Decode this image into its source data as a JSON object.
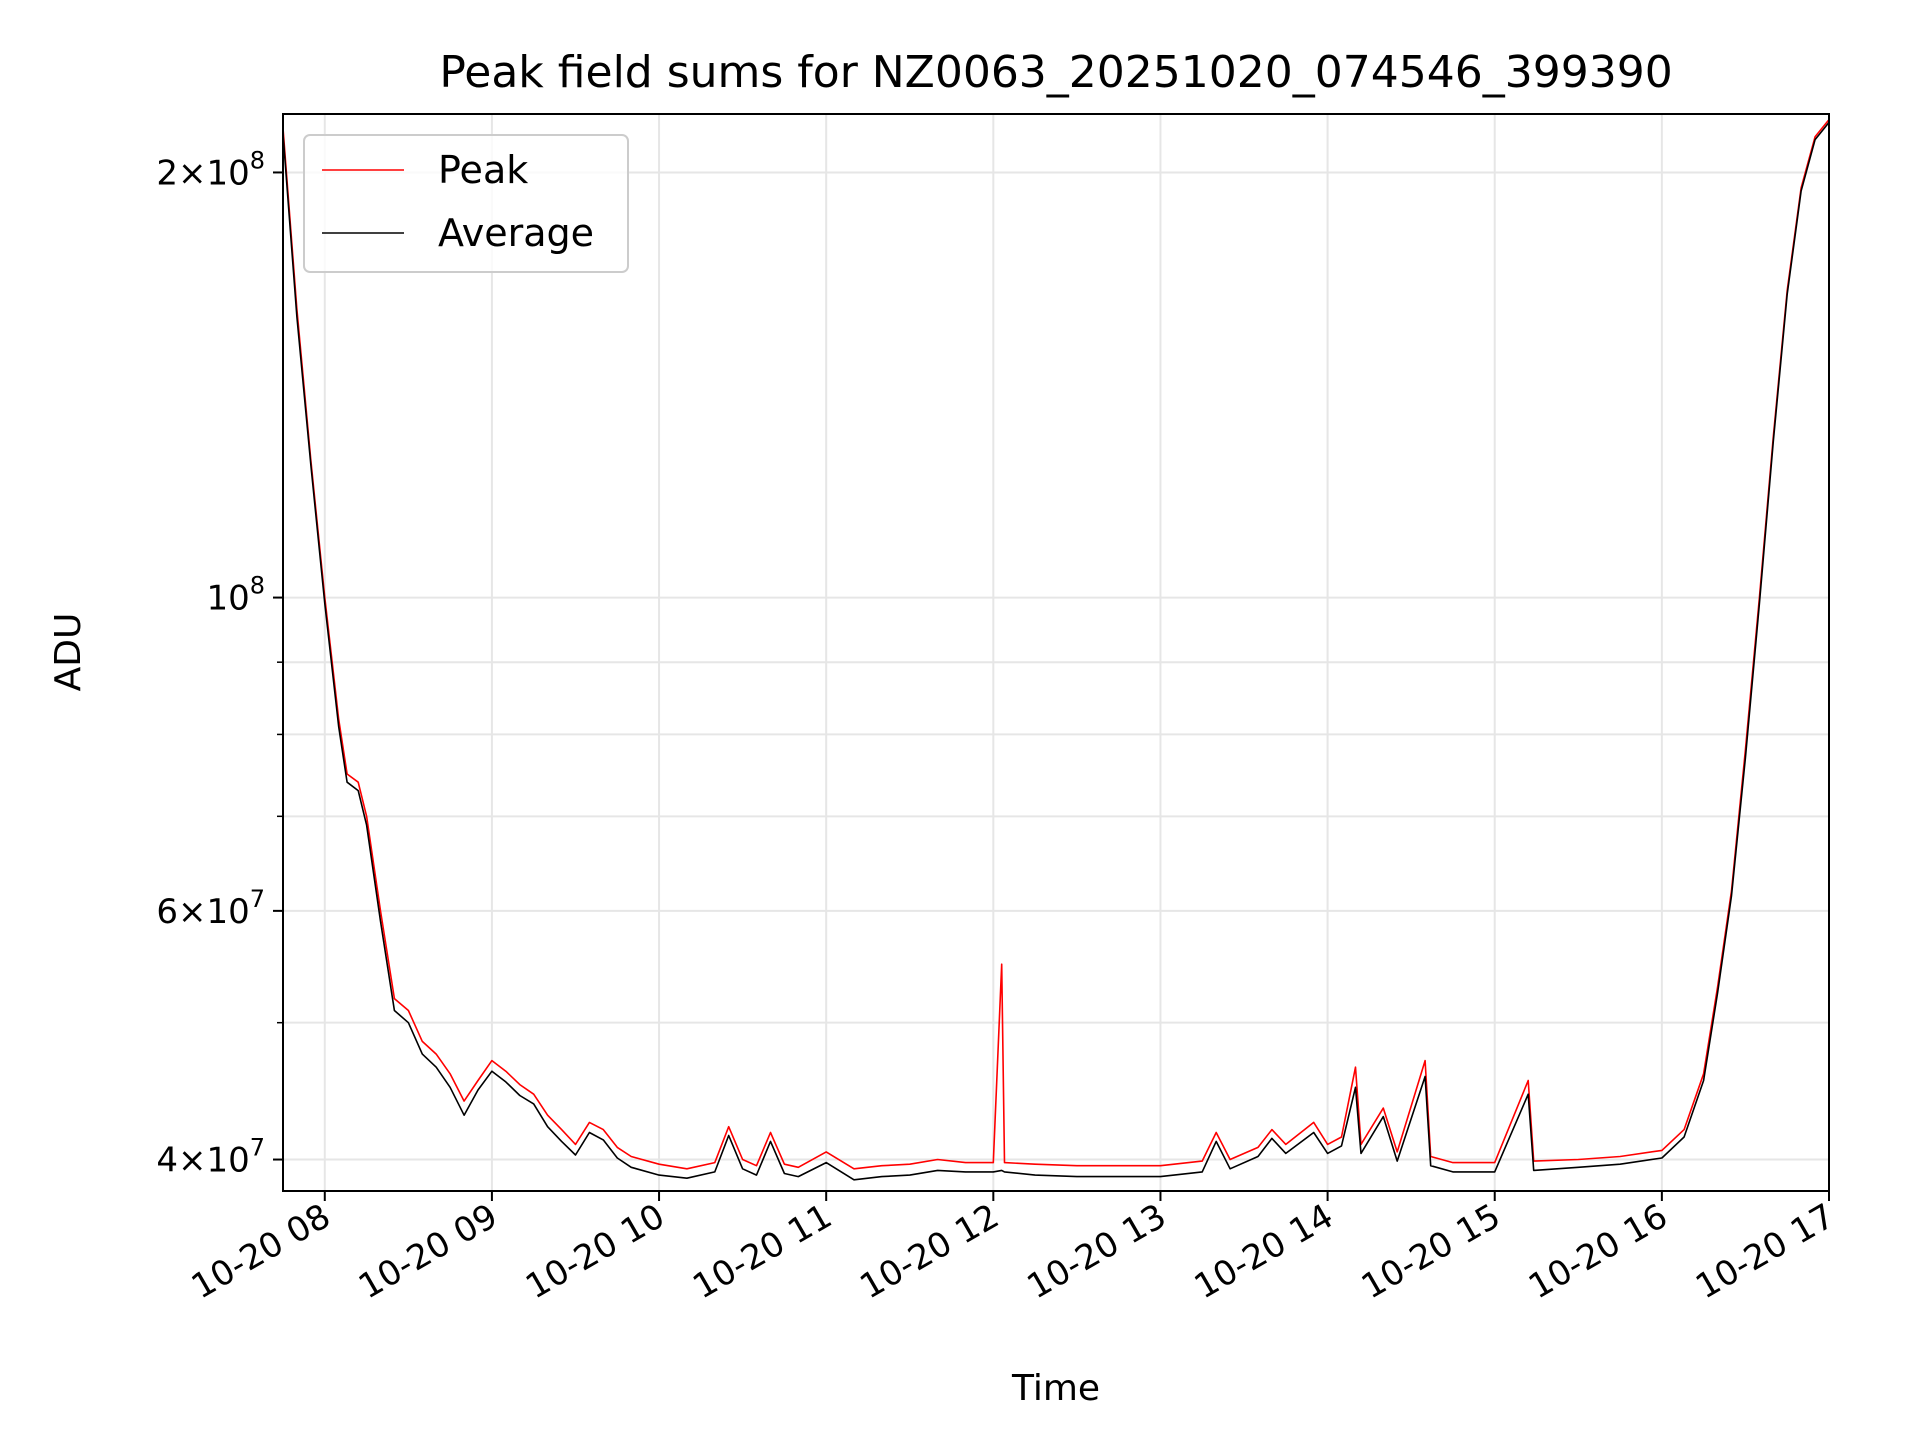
{
  "chart_data": {
    "type": "line",
    "title": "Peak field sums for NZ0063_20251020_074546_399390",
    "xlabel": "Time",
    "ylabel": "ADU",
    "yscale": "log",
    "xlim": [
      "2025-10-20 07:45",
      "2025-10-20 17:00"
    ],
    "ylim": [
      38000000,
      220000000
    ],
    "grid": true,
    "legend_position": "upper-left",
    "x_ticks": [
      {
        "value": "2025-10-20 08:00",
        "label": "10-20 08"
      },
      {
        "value": "2025-10-20 09:00",
        "label": "10-20 09"
      },
      {
        "value": "2025-10-20 10:00",
        "label": "10-20 10"
      },
      {
        "value": "2025-10-20 11:00",
        "label": "10-20 11"
      },
      {
        "value": "2025-10-20 12:00",
        "label": "10-20 12"
      },
      {
        "value": "2025-10-20 13:00",
        "label": "10-20 13"
      },
      {
        "value": "2025-10-20 14:00",
        "label": "10-20 14"
      },
      {
        "value": "2025-10-20 15:00",
        "label": "10-20 15"
      },
      {
        "value": "2025-10-20 16:00",
        "label": "10-20 16"
      },
      {
        "value": "2025-10-20 17:00",
        "label": "10-20 17"
      }
    ],
    "y_ticks": [
      {
        "value": 40000000,
        "mant": "4",
        "exp": "7"
      },
      {
        "value": 60000000,
        "mant": "6",
        "exp": "7"
      },
      {
        "value": 100000000,
        "mant": "",
        "exp": "8"
      },
      {
        "value": 200000000,
        "mant": "2",
        "exp": "8"
      }
    ],
    "y_minor_ticks": [
      50000000,
      70000000,
      80000000,
      90000000
    ],
    "series": [
      {
        "name": "Peak",
        "color": "#ff0000",
        "points": [
          [
            "2025-10-20 07:45",
            215000000
          ],
          [
            "2025-10-20 07:50",
            160000000
          ],
          [
            "2025-10-20 07:55",
            125000000
          ],
          [
            "2025-10-20 08:00",
            100000000
          ],
          [
            "2025-10-20 08:05",
            82000000
          ],
          [
            "2025-10-20 08:08",
            75000000
          ],
          [
            "2025-10-20 08:12",
            74000000
          ],
          [
            "2025-10-20 08:15",
            70000000
          ],
          [
            "2025-10-20 08:20",
            60000000
          ],
          [
            "2025-10-20 08:25",
            52000000
          ],
          [
            "2025-10-20 08:30",
            51000000
          ],
          [
            "2025-10-20 08:35",
            48500000
          ],
          [
            "2025-10-20 08:40",
            47500000
          ],
          [
            "2025-10-20 08:45",
            46000000
          ],
          [
            "2025-10-20 08:50",
            44000000
          ],
          [
            "2025-10-20 08:55",
            45500000
          ],
          [
            "2025-10-20 09:00",
            47000000
          ],
          [
            "2025-10-20 09:05",
            46200000
          ],
          [
            "2025-10-20 09:10",
            45200000
          ],
          [
            "2025-10-20 09:15",
            44500000
          ],
          [
            "2025-10-20 09:20",
            43000000
          ],
          [
            "2025-10-20 09:25",
            42000000
          ],
          [
            "2025-10-20 09:30",
            41000000
          ],
          [
            "2025-10-20 09:35",
            42500000
          ],
          [
            "2025-10-20 09:40",
            42000000
          ],
          [
            "2025-10-20 09:45",
            40800000
          ],
          [
            "2025-10-20 09:50",
            40200000
          ],
          [
            "2025-10-20 10:00",
            39700000
          ],
          [
            "2025-10-20 10:10",
            39400000
          ],
          [
            "2025-10-20 10:20",
            39800000
          ],
          [
            "2025-10-20 10:25",
            42200000
          ],
          [
            "2025-10-20 10:30",
            40000000
          ],
          [
            "2025-10-20 10:35",
            39600000
          ],
          [
            "2025-10-20 10:40",
            41800000
          ],
          [
            "2025-10-20 10:45",
            39700000
          ],
          [
            "2025-10-20 10:50",
            39500000
          ],
          [
            "2025-10-20 11:00",
            40500000
          ],
          [
            "2025-10-20 11:10",
            39400000
          ],
          [
            "2025-10-20 11:20",
            39600000
          ],
          [
            "2025-10-20 11:30",
            39700000
          ],
          [
            "2025-10-20 11:40",
            40000000
          ],
          [
            "2025-10-20 11:50",
            39800000
          ],
          [
            "2025-10-20 12:00",
            39800000
          ],
          [
            "2025-10-20 12:03",
            55000000
          ],
          [
            "2025-10-20 12:04",
            39800000
          ],
          [
            "2025-10-20 12:15",
            39700000
          ],
          [
            "2025-10-20 12:30",
            39600000
          ],
          [
            "2025-10-20 12:45",
            39600000
          ],
          [
            "2025-10-20 13:00",
            39600000
          ],
          [
            "2025-10-20 13:15",
            39900000
          ],
          [
            "2025-10-20 13:20",
            41800000
          ],
          [
            "2025-10-20 13:25",
            40000000
          ],
          [
            "2025-10-20 13:35",
            40800000
          ],
          [
            "2025-10-20 13:40",
            42000000
          ],
          [
            "2025-10-20 13:45",
            41000000
          ],
          [
            "2025-10-20 13:55",
            42500000
          ],
          [
            "2025-10-20 14:00",
            41000000
          ],
          [
            "2025-10-20 14:05",
            41500000
          ],
          [
            "2025-10-20 14:10",
            46500000
          ],
          [
            "2025-10-20 14:12",
            41000000
          ],
          [
            "2025-10-20 14:20",
            43500000
          ],
          [
            "2025-10-20 14:25",
            40500000
          ],
          [
            "2025-10-20 14:35",
            47000000
          ],
          [
            "2025-10-20 14:37",
            40200000
          ],
          [
            "2025-10-20 14:45",
            39800000
          ],
          [
            "2025-10-20 15:00",
            39800000
          ],
          [
            "2025-10-20 15:12",
            45500000
          ],
          [
            "2025-10-20 15:14",
            39900000
          ],
          [
            "2025-10-20 15:30",
            40000000
          ],
          [
            "2025-10-20 15:45",
            40200000
          ],
          [
            "2025-10-20 16:00",
            40600000
          ],
          [
            "2025-10-20 16:08",
            42000000
          ],
          [
            "2025-10-20 16:15",
            46000000
          ],
          [
            "2025-10-20 16:20",
            53000000
          ],
          [
            "2025-10-20 16:25",
            62000000
          ],
          [
            "2025-10-20 16:30",
            78000000
          ],
          [
            "2025-10-20 16:35",
            100000000
          ],
          [
            "2025-10-20 16:40",
            130000000
          ],
          [
            "2025-10-20 16:45",
            165000000
          ],
          [
            "2025-10-20 16:50",
            195000000
          ],
          [
            "2025-10-20 16:55",
            212000000
          ],
          [
            "2025-10-20 17:00",
            218000000
          ]
        ]
      },
      {
        "name": "Average",
        "color": "#000000",
        "points": [
          [
            "2025-10-20 07:45",
            213000000
          ],
          [
            "2025-10-20 07:50",
            158000000
          ],
          [
            "2025-10-20 07:55",
            124000000
          ],
          [
            "2025-10-20 08:00",
            99000000
          ],
          [
            "2025-10-20 08:05",
            81000000
          ],
          [
            "2025-10-20 08:08",
            74000000
          ],
          [
            "2025-10-20 08:12",
            73000000
          ],
          [
            "2025-10-20 08:15",
            69000000
          ],
          [
            "2025-10-20 08:20",
            59000000
          ],
          [
            "2025-10-20 08:25",
            51000000
          ],
          [
            "2025-10-20 08:30",
            50000000
          ],
          [
            "2025-10-20 08:35",
            47500000
          ],
          [
            "2025-10-20 08:40",
            46500000
          ],
          [
            "2025-10-20 08:45",
            45000000
          ],
          [
            "2025-10-20 08:50",
            43000000
          ],
          [
            "2025-10-20 08:55",
            44800000
          ],
          [
            "2025-10-20 09:00",
            46200000
          ],
          [
            "2025-10-20 09:05",
            45400000
          ],
          [
            "2025-10-20 09:10",
            44400000
          ],
          [
            "2025-10-20 09:15",
            43800000
          ],
          [
            "2025-10-20 09:20",
            42200000
          ],
          [
            "2025-10-20 09:25",
            41200000
          ],
          [
            "2025-10-20 09:30",
            40300000
          ],
          [
            "2025-10-20 09:35",
            41800000
          ],
          [
            "2025-10-20 09:40",
            41300000
          ],
          [
            "2025-10-20 09:45",
            40100000
          ],
          [
            "2025-10-20 09:50",
            39500000
          ],
          [
            "2025-10-20 10:00",
            39000000
          ],
          [
            "2025-10-20 10:10",
            38800000
          ],
          [
            "2025-10-20 10:20",
            39200000
          ],
          [
            "2025-10-20 10:25",
            41600000
          ],
          [
            "2025-10-20 10:30",
            39400000
          ],
          [
            "2025-10-20 10:35",
            39000000
          ],
          [
            "2025-10-20 10:40",
            41200000
          ],
          [
            "2025-10-20 10:45",
            39100000
          ],
          [
            "2025-10-20 10:50",
            38900000
          ],
          [
            "2025-10-20 11:00",
            39800000
          ],
          [
            "2025-10-20 11:10",
            38700000
          ],
          [
            "2025-10-20 11:20",
            38900000
          ],
          [
            "2025-10-20 11:30",
            39000000
          ],
          [
            "2025-10-20 11:40",
            39300000
          ],
          [
            "2025-10-20 11:50",
            39200000
          ],
          [
            "2025-10-20 12:00",
            39200000
          ],
          [
            "2025-10-20 12:03",
            39300000
          ],
          [
            "2025-10-20 12:04",
            39200000
          ],
          [
            "2025-10-20 12:15",
            39000000
          ],
          [
            "2025-10-20 12:30",
            38900000
          ],
          [
            "2025-10-20 12:45",
            38900000
          ],
          [
            "2025-10-20 13:00",
            38900000
          ],
          [
            "2025-10-20 13:15",
            39200000
          ],
          [
            "2025-10-20 13:20",
            41200000
          ],
          [
            "2025-10-20 13:25",
            39400000
          ],
          [
            "2025-10-20 13:35",
            40200000
          ],
          [
            "2025-10-20 13:40",
            41400000
          ],
          [
            "2025-10-20 13:45",
            40400000
          ],
          [
            "2025-10-20 13:55",
            41800000
          ],
          [
            "2025-10-20 14:00",
            40400000
          ],
          [
            "2025-10-20 14:05",
            40900000
          ],
          [
            "2025-10-20 14:10",
            45000000
          ],
          [
            "2025-10-20 14:12",
            40400000
          ],
          [
            "2025-10-20 14:20",
            42900000
          ],
          [
            "2025-10-20 14:25",
            39900000
          ],
          [
            "2025-10-20 14:35",
            45800000
          ],
          [
            "2025-10-20 14:37",
            39600000
          ],
          [
            "2025-10-20 14:45",
            39200000
          ],
          [
            "2025-10-20 15:00",
            39200000
          ],
          [
            "2025-10-20 15:12",
            44500000
          ],
          [
            "2025-10-20 15:14",
            39300000
          ],
          [
            "2025-10-20 15:30",
            39500000
          ],
          [
            "2025-10-20 15:45",
            39700000
          ],
          [
            "2025-10-20 16:00",
            40100000
          ],
          [
            "2025-10-20 16:08",
            41500000
          ],
          [
            "2025-10-20 16:15",
            45500000
          ],
          [
            "2025-10-20 16:20",
            52500000
          ],
          [
            "2025-10-20 16:25",
            61500000
          ],
          [
            "2025-10-20 16:30",
            77000000
          ],
          [
            "2025-10-20 16:35",
            99000000
          ],
          [
            "2025-10-20 16:40",
            129000000
          ],
          [
            "2025-10-20 16:45",
            164000000
          ],
          [
            "2025-10-20 16:50",
            194000000
          ],
          [
            "2025-10-20 16:55",
            211000000
          ],
          [
            "2025-10-20 17:00",
            217000000
          ]
        ]
      }
    ]
  }
}
